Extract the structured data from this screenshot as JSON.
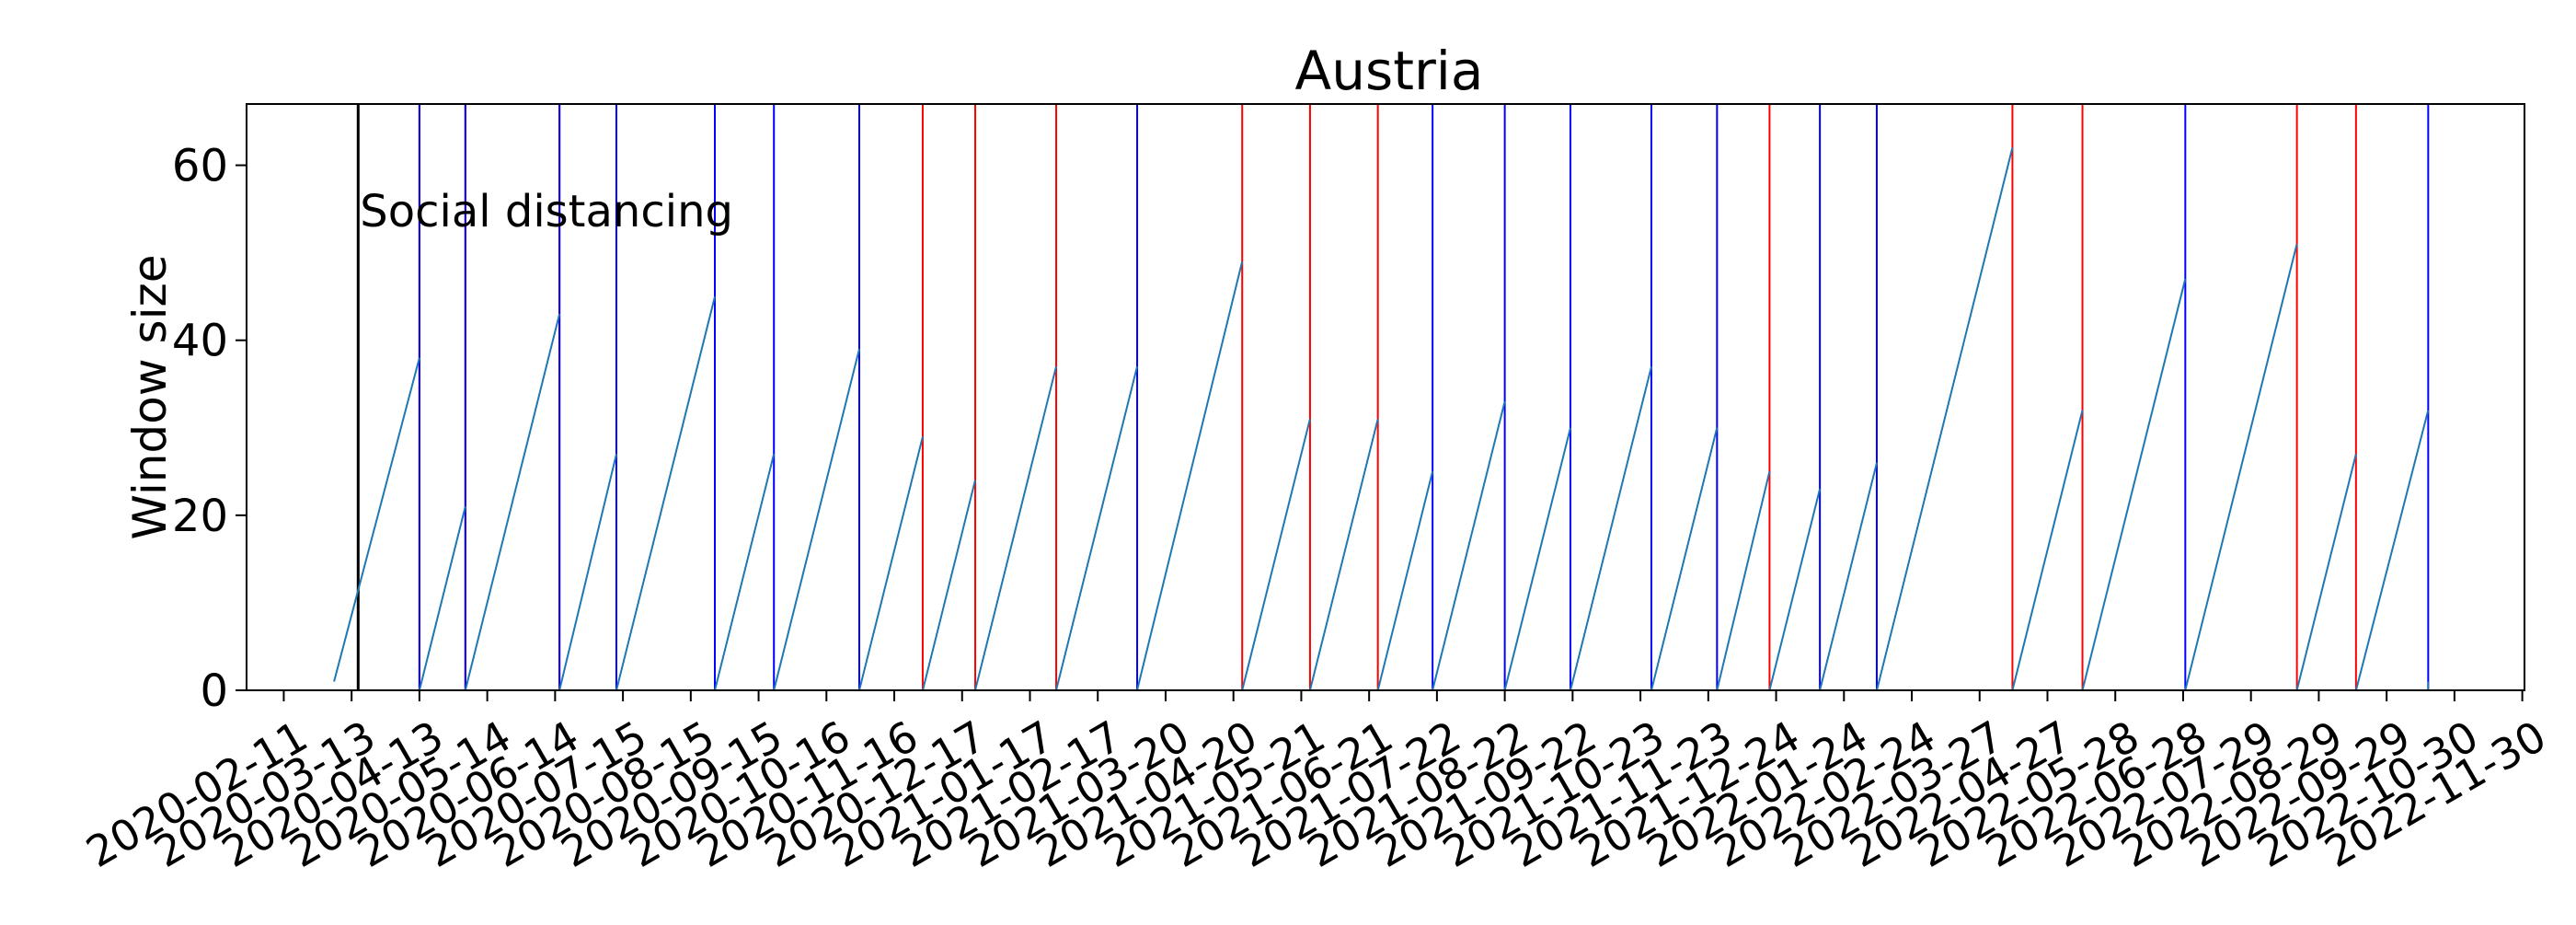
{
  "chart_data": {
    "type": "line",
    "title": "Austria",
    "xlabel": "",
    "ylabel": "Window size",
    "ylim": [
      0,
      67
    ],
    "yticks": [
      0,
      20,
      40,
      60
    ],
    "xlim": [
      "2020-01-25",
      "2022-12-01"
    ],
    "xticks": [
      "2020-02-11",
      "2020-03-13",
      "2020-04-13",
      "2020-05-14",
      "2020-06-14",
      "2020-07-15",
      "2020-08-15",
      "2020-09-15",
      "2020-10-16",
      "2020-11-16",
      "2020-12-17",
      "2021-01-17",
      "2021-02-17",
      "2021-03-20",
      "2021-04-20",
      "2021-05-21",
      "2021-06-21",
      "2021-07-22",
      "2021-08-22",
      "2021-09-22",
      "2021-10-23",
      "2021-11-23",
      "2021-12-24",
      "2022-01-24",
      "2022-02-24",
      "2022-03-27",
      "2022-04-27",
      "2022-05-28",
      "2022-06-28",
      "2022-07-29",
      "2022-08-29",
      "2022-09-29",
      "2022-10-30",
      "2022-11-30"
    ],
    "grid": false,
    "annotation": {
      "text": "Social distancing",
      "date": "2020-03-16"
    },
    "series": [
      {
        "color": "#1f77b4",
        "segments": [
          [
            [
              "2020-03-05",
              1
            ],
            [
              "2020-04-13",
              38
            ]
          ],
          [
            [
              "2020-04-13",
              0
            ],
            [
              "2020-05-04",
              21
            ]
          ],
          [
            [
              "2020-05-04",
              0
            ],
            [
              "2020-06-16",
              43
            ]
          ],
          [
            [
              "2020-06-16",
              0
            ],
            [
              "2020-07-12",
              27
            ]
          ],
          [
            [
              "2020-07-12",
              0
            ],
            [
              "2020-08-26",
              45
            ]
          ],
          [
            [
              "2020-08-26",
              0
            ],
            [
              "2020-09-22",
              27
            ]
          ],
          [
            [
              "2020-09-22",
              0
            ],
            [
              "2020-10-31",
              39
            ]
          ],
          [
            [
              "2020-10-31",
              0
            ],
            [
              "2020-11-29",
              29
            ]
          ],
          [
            [
              "2020-11-29",
              0
            ],
            [
              "2020-12-23",
              24
            ]
          ],
          [
            [
              "2020-12-23",
              0
            ],
            [
              "2021-01-29",
              37
            ]
          ],
          [
            [
              "2021-01-29",
              0
            ],
            [
              "2021-03-07",
              37
            ]
          ],
          [
            [
              "2021-03-07",
              0
            ],
            [
              "2021-04-24",
              49
            ]
          ],
          [
            [
              "2021-04-24",
              0
            ],
            [
              "2021-05-25",
              31
            ]
          ],
          [
            [
              "2021-05-25",
              0
            ],
            [
              "2021-06-25",
              31
            ]
          ],
          [
            [
              "2021-06-25",
              0
            ],
            [
              "2021-07-20",
              25
            ]
          ],
          [
            [
              "2021-07-20",
              0
            ],
            [
              "2021-08-22",
              33
            ]
          ],
          [
            [
              "2021-08-22",
              0
            ],
            [
              "2021-09-21",
              30
            ]
          ],
          [
            [
              "2021-09-21",
              0
            ],
            [
              "2021-10-28",
              37
            ]
          ],
          [
            [
              "2021-10-28",
              0
            ],
            [
              "2021-11-27",
              30
            ]
          ],
          [
            [
              "2021-11-27",
              0
            ],
            [
              "2021-12-21",
              25
            ]
          ],
          [
            [
              "2021-12-21",
              0
            ],
            [
              "2022-01-13",
              23
            ]
          ],
          [
            [
              "2022-01-13",
              0
            ],
            [
              "2022-02-08",
              26
            ]
          ],
          [
            [
              "2022-02-08",
              0
            ],
            [
              "2022-04-11",
              62
            ]
          ],
          [
            [
              "2022-04-11",
              0
            ],
            [
              "2022-05-13",
              32
            ]
          ],
          [
            [
              "2022-05-13",
              0
            ],
            [
              "2022-06-29",
              47
            ]
          ],
          [
            [
              "2022-06-29",
              0
            ],
            [
              "2022-08-19",
              51
            ]
          ],
          [
            [
              "2022-08-19",
              0
            ],
            [
              "2022-09-15",
              27
            ]
          ],
          [
            [
              "2022-09-15",
              0
            ],
            [
              "2022-10-18",
              32
            ]
          ],
          [
            [
              "2022-10-18",
              0
            ],
            [
              "2022-10-18",
              1
            ]
          ]
        ]
      }
    ],
    "vlines": {
      "black": [
        "2020-03-16"
      ],
      "red": [
        "2020-04-13",
        "2020-05-04",
        "2020-06-16",
        "2020-11-29",
        "2020-12-23",
        "2021-01-29",
        "2021-04-24",
        "2021-05-25",
        "2021-06-25",
        "2021-12-21",
        "2022-04-11",
        "2022-05-13",
        "2022-08-19",
        "2022-09-15"
      ],
      "blue": [
        "2020-04-13",
        "2020-05-04",
        "2020-06-16",
        "2020-07-12",
        "2020-08-26",
        "2020-09-22",
        "2020-10-31",
        "2021-03-07",
        "2021-07-20",
        "2021-08-22",
        "2021-09-21",
        "2021-10-28",
        "2021-11-27",
        "2022-01-13",
        "2022-02-08",
        "2022-06-29",
        "2022-10-18"
      ]
    },
    "colors": {
      "black": "#000000",
      "red": "#ff0000",
      "blue": "#0000ff",
      "series": "#1f77b4"
    }
  }
}
